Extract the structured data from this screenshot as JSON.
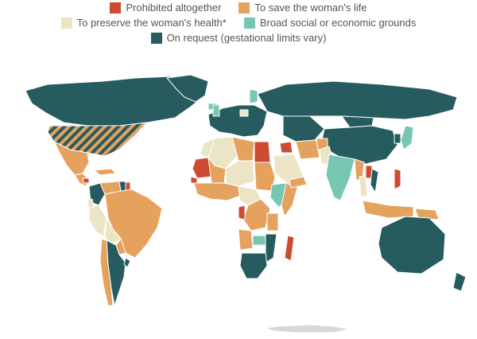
{
  "colors": {
    "prohibited": "#ce4b33",
    "save_life": "#e5a25f",
    "preserve_health": "#ebe4c5",
    "broad_grounds": "#77c6b2",
    "on_request": "#265b60",
    "no_data": "#d8d8d8",
    "border": "#ffffff"
  },
  "legend": {
    "items": [
      {
        "key": "prohibited",
        "label": "Prohibited altogether"
      },
      {
        "key": "save_life",
        "label": "To save the woman's life"
      },
      {
        "key": "preserve_health",
        "label": "To preserve the woman's health*"
      },
      {
        "key": "broad_grounds",
        "label": "Broad social or economic grounds"
      },
      {
        "key": "on_request",
        "label": "On request (gestational limits vary)"
      }
    ]
  },
  "map": {
    "projection": "world",
    "regions": [
      {
        "name": "Canada",
        "category": "on_request"
      },
      {
        "name": "United States",
        "category": "on_request",
        "hatched_with": "save_life"
      },
      {
        "name": "Mexico",
        "category": "save_life"
      },
      {
        "name": "Central America",
        "category": "save_life"
      },
      {
        "name": "Honduras",
        "category": "prohibited"
      },
      {
        "name": "Caribbean",
        "category": "save_life"
      },
      {
        "name": "Colombia",
        "category": "on_request"
      },
      {
        "name": "Venezuela",
        "category": "save_life"
      },
      {
        "name": "Guyana",
        "category": "on_request"
      },
      {
        "name": "Suriname",
        "category": "prohibited"
      },
      {
        "name": "Ecuador",
        "category": "preserve_health"
      },
      {
        "name": "Peru",
        "category": "preserve_health"
      },
      {
        "name": "Brazil",
        "category": "save_life"
      },
      {
        "name": "Bolivia",
        "category": "preserve_health"
      },
      {
        "name": "Paraguay",
        "category": "save_life"
      },
      {
        "name": "Chile",
        "category": "save_life"
      },
      {
        "name": "Argentina",
        "category": "on_request"
      },
      {
        "name": "Uruguay",
        "category": "on_request"
      },
      {
        "name": "Greenland",
        "category": "on_request"
      },
      {
        "name": "Iceland",
        "category": "broad_grounds"
      },
      {
        "name": "Europe",
        "category": "on_request"
      },
      {
        "name": "United Kingdom",
        "category": "broad_grounds"
      },
      {
        "name": "Finland",
        "category": "broad_grounds"
      },
      {
        "name": "Poland",
        "category": "preserve_health"
      },
      {
        "name": "Russia",
        "category": "on_request"
      },
      {
        "name": "Kazakhstan and Central Asia",
        "category": "on_request"
      },
      {
        "name": "Mongolia",
        "category": "on_request"
      },
      {
        "name": "China",
        "category": "on_request"
      },
      {
        "name": "Japan",
        "category": "broad_grounds"
      },
      {
        "name": "Korea",
        "category": "on_request"
      },
      {
        "name": "Morocco",
        "category": "preserve_health"
      },
      {
        "name": "Algeria",
        "category": "preserve_health"
      },
      {
        "name": "Mauritania",
        "category": "prohibited"
      },
      {
        "name": "Mali",
        "category": "save_life"
      },
      {
        "name": "Senegal",
        "category": "prohibited"
      },
      {
        "name": "West Africa",
        "category": "save_life"
      },
      {
        "name": "Libya",
        "category": "save_life"
      },
      {
        "name": "Egypt",
        "category": "prohibited"
      },
      {
        "name": "Niger and Chad",
        "category": "preserve_health"
      },
      {
        "name": "Sudan",
        "category": "save_life"
      },
      {
        "name": "Ethiopia",
        "category": "broad_grounds"
      },
      {
        "name": "Somalia",
        "category": "save_life"
      },
      {
        "name": "Central Africa",
        "category": "preserve_health"
      },
      {
        "name": "DR Congo",
        "category": "save_life"
      },
      {
        "name": "Congo",
        "category": "prohibited"
      },
      {
        "name": "Tanzania",
        "category": "save_life"
      },
      {
        "name": "Angola",
        "category": "save_life"
      },
      {
        "name": "Zambia",
        "category": "broad_grounds"
      },
      {
        "name": "Mozambique",
        "category": "on_request"
      },
      {
        "name": "South Africa",
        "category": "on_request"
      },
      {
        "name": "Madagascar",
        "category": "prohibited"
      },
      {
        "name": "Saudi Arabia",
        "category": "preserve_health"
      },
      {
        "name": "Yemen",
        "category": "save_life"
      },
      {
        "name": "Iran",
        "category": "save_life"
      },
      {
        "name": "Iraq",
        "category": "prohibited"
      },
      {
        "name": "Afghanistan",
        "category": "save_life"
      },
      {
        "name": "Pakistan",
        "category": "preserve_health"
      },
      {
        "name": "India",
        "category": "broad_grounds"
      },
      {
        "name": "Myanmar",
        "category": "save_life"
      },
      {
        "name": "Laos",
        "category": "prohibited"
      },
      {
        "name": "Thailand",
        "category": "preserve_health"
      },
      {
        "name": "Vietnam",
        "category": "on_request"
      },
      {
        "name": "Philippines",
        "category": "prohibited"
      },
      {
        "name": "Indonesia",
        "category": "save_life"
      },
      {
        "name": "Papua New Guinea",
        "category": "save_life"
      },
      {
        "name": "Australia",
        "category": "on_request"
      },
      {
        "name": "New Zealand",
        "category": "on_request"
      },
      {
        "name": "Antarctica",
        "category": "no_data"
      }
    ]
  }
}
